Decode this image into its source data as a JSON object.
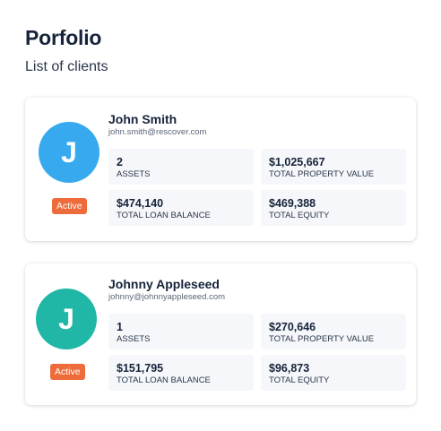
{
  "header": {
    "title": "Porfolio",
    "subtitle": "List of clients"
  },
  "clients": [
    {
      "initial": "J",
      "avatar_color": "#36a9ef",
      "name": "John Smith",
      "email": "john.smith@rescover.com",
      "status": "Active",
      "stats": [
        {
          "value": "2",
          "label": "ASSETS"
        },
        {
          "value": "$1,025,667",
          "label": "TOTAL PROPERTY VALUE"
        },
        {
          "value": "$474,140",
          "label": "TOTAL LOAN BALANCE"
        },
        {
          "value": "$469,388",
          "label": "TOTAL EQUITY"
        }
      ]
    },
    {
      "initial": "J",
      "avatar_color": "#20b7a6",
      "name": "Johnny Appleseed",
      "email": "johnny@johnnyappleseed.com",
      "status": "Active",
      "stats": [
        {
          "value": "1",
          "label": "ASSETS"
        },
        {
          "value": "$270,646",
          "label": "TOTAL PROPERTY VALUE"
        },
        {
          "value": "$151,795",
          "label": "TOTAL LOAN BALANCE"
        },
        {
          "value": "$96,873",
          "label": "TOTAL EQUITY"
        }
      ]
    }
  ],
  "colors": {
    "status_active": "#ee6c3b",
    "card_bg": "#ffffff",
    "stat_bg": "#f5f7fa",
    "title_text": "#16233a"
  }
}
